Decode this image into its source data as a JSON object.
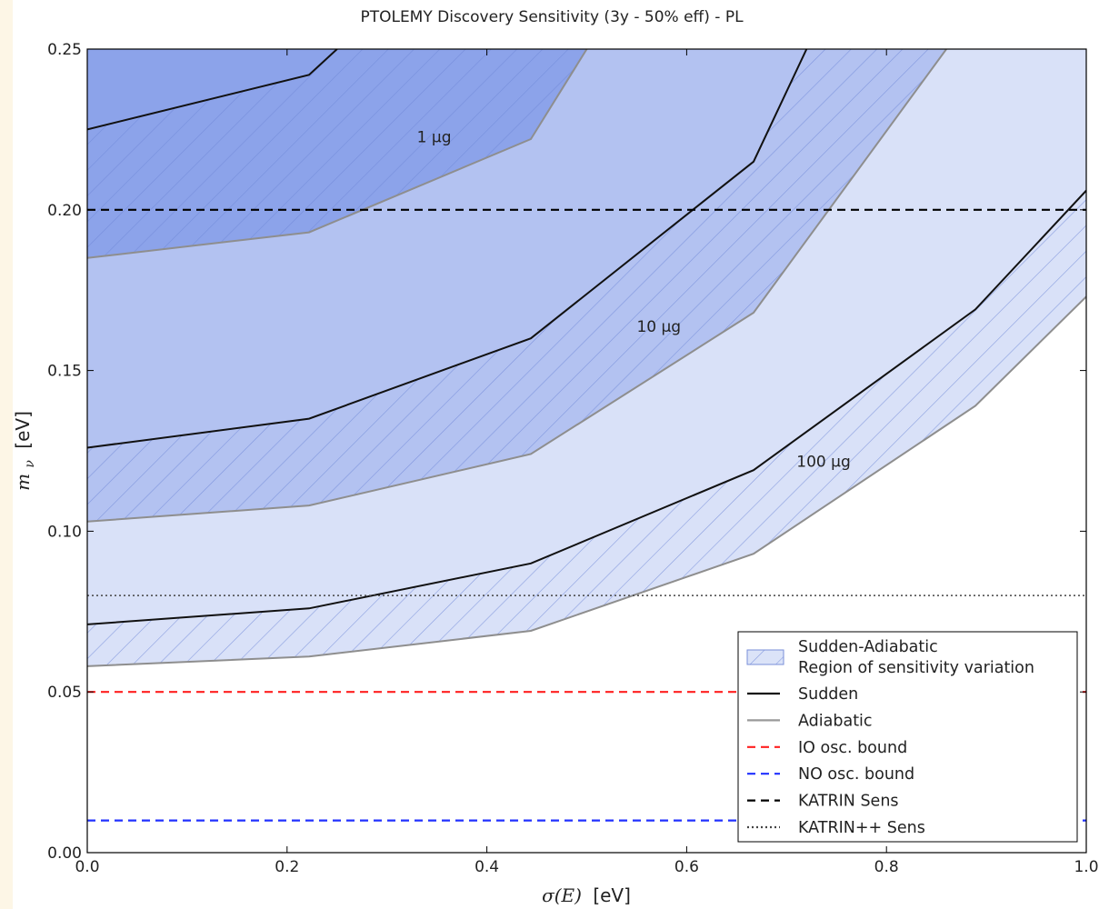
{
  "chart_data": {
    "type": "area",
    "title": "PTOLEMY Discovery Sensitivity (3y - 50% eff) - PL",
    "xlabel_symbol": "σ(E)",
    "xlabel_unit": "[eV]",
    "ylabel_symbol": "m",
    "ylabel_subscript": "ν",
    "ylabel_unit": "[eV]",
    "xlim": [
      0.0,
      1.0
    ],
    "ylim": [
      0.0,
      0.25
    ],
    "x_ticks": [
      0.0,
      0.2,
      0.4,
      0.6,
      0.8,
      1.0
    ],
    "x_tick_labels": [
      "0.0",
      "0.2",
      "0.4",
      "0.6",
      "0.8",
      "1.0"
    ],
    "y_ticks": [
      0.0,
      0.05,
      0.1,
      0.15,
      0.2,
      0.25
    ],
    "y_tick_labels": [
      "0.00",
      "0.05",
      "0.10",
      "0.15",
      "0.20",
      "0.25"
    ],
    "x": [
      0.0,
      0.222,
      0.444,
      0.667,
      0.889,
      1.0
    ],
    "bands": [
      {
        "label": "1 μg",
        "color": "#8ca3ea",
        "sudden": [
          [
            0.0,
            0.225
          ],
          [
            0.222,
            0.242
          ],
          [
            0.25,
            0.25
          ]
        ],
        "adiabatic": [
          [
            0.0,
            0.185
          ],
          [
            0.222,
            0.193
          ],
          [
            0.444,
            0.222
          ],
          [
            0.5,
            0.25
          ]
        ],
        "label_pos": [
          0.33,
          0.221
        ]
      },
      {
        "label": "10 μg",
        "color": "#b3c2f1",
        "sudden": [
          [
            0.0,
            0.126
          ],
          [
            0.222,
            0.135
          ],
          [
            0.444,
            0.16
          ],
          [
            0.667,
            0.215
          ],
          [
            0.72,
            0.25
          ]
        ],
        "adiabatic": [
          [
            0.0,
            0.103
          ],
          [
            0.222,
            0.108
          ],
          [
            0.444,
            0.124
          ],
          [
            0.667,
            0.168
          ],
          [
            0.86,
            0.25
          ]
        ],
        "label_pos": [
          0.55,
          0.162
        ]
      },
      {
        "label": "100 μg",
        "color": "#d9e1f8",
        "sudden": [
          [
            0.0,
            0.071
          ],
          [
            0.222,
            0.076
          ],
          [
            0.444,
            0.09
          ],
          [
            0.667,
            0.119
          ],
          [
            0.889,
            0.169
          ],
          [
            1.0,
            0.206
          ]
        ],
        "adiabatic": [
          [
            0.0,
            0.058
          ],
          [
            0.222,
            0.061
          ],
          [
            0.444,
            0.069
          ],
          [
            0.667,
            0.093
          ],
          [
            0.889,
            0.139
          ],
          [
            1.0,
            0.173
          ]
        ],
        "label_pos": [
          0.71,
          0.12
        ]
      }
    ],
    "reference_lines": [
      {
        "name": "IO osc. bound",
        "y": 0.05,
        "color": "#ff2020",
        "style": "dashed"
      },
      {
        "name": "NO osc. bound",
        "y": 0.01,
        "color": "#2030ff",
        "style": "dashed"
      },
      {
        "name": "KATRIN Sens",
        "y": 0.2,
        "color": "#000000",
        "style": "dashed"
      },
      {
        "name": "KATRIN++ Sens",
        "y": 0.08,
        "color": "#444444",
        "style": "dotted"
      }
    ],
    "legend": {
      "placement": "lower-right",
      "entries": [
        {
          "label": "Sudden-Adiabatic",
          "label2": "Region of sensitivity variation",
          "kind": "hatch"
        },
        {
          "label": "Sudden",
          "kind": "line",
          "color": "#111111",
          "style": "solid"
        },
        {
          "label": "Adiabatic",
          "kind": "line",
          "color": "#999999",
          "style": "solid"
        },
        {
          "label": "IO osc. bound",
          "kind": "line",
          "color": "#ff2020",
          "style": "dashed"
        },
        {
          "label": "NO osc. bound",
          "kind": "line",
          "color": "#2030ff",
          "style": "dashed"
        },
        {
          "label": "KATRIN Sens",
          "kind": "line",
          "color": "#000000",
          "style": "dashed"
        },
        {
          "label": "KATRIN++ Sens",
          "kind": "line",
          "color": "#444444",
          "style": "dotted"
        }
      ]
    },
    "colors": {
      "sudden_line": "#111111",
      "adiabatic_line": "#8e8e8e",
      "hatch_stroke": "#6f86d6"
    },
    "grid": false
  }
}
